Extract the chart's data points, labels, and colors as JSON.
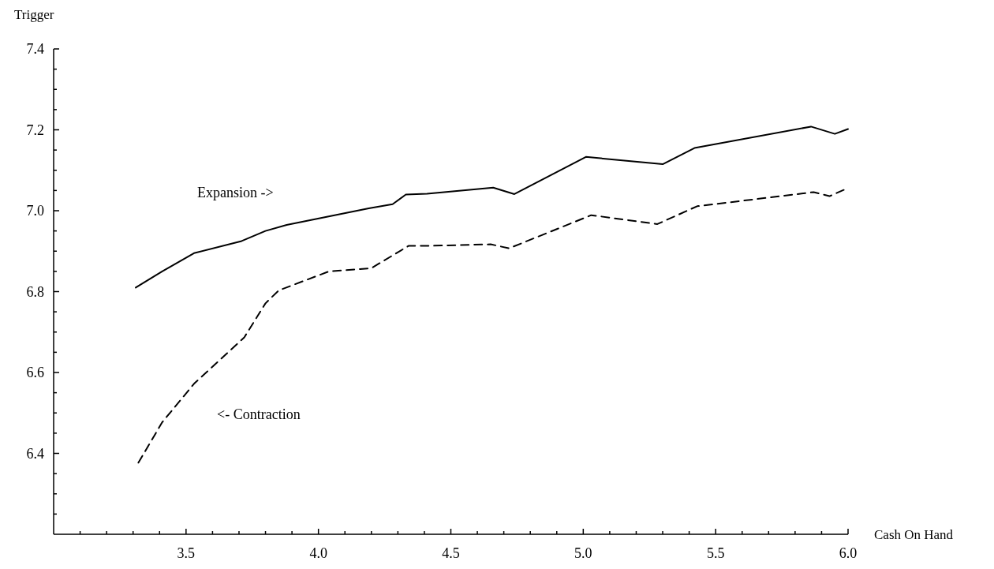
{
  "chart_data": {
    "type": "line",
    "xlabel": "Cash On Hand",
    "ylabel": "Trigger",
    "xlim": [
      3.0,
      6.0
    ],
    "ylim": [
      6.2,
      7.4
    ],
    "xticks": [
      {
        "value": 3.1,
        "label": null
      },
      {
        "value": 3.2,
        "label": null
      },
      {
        "value": 3.3,
        "label": null
      },
      {
        "value": 3.4,
        "label": null
      },
      3.5,
      {
        "value": 3.6,
        "label": null
      },
      {
        "value": 3.7,
        "label": null
      },
      {
        "value": 3.8,
        "label": null
      },
      {
        "value": 3.9,
        "label": null
      },
      {
        "value": 4.0,
        "label": "4.0"
      },
      {
        "value": 4.1,
        "label": null
      },
      {
        "value": 4.2,
        "label": null
      },
      {
        "value": 4.3,
        "label": null
      },
      {
        "value": 4.4,
        "label": null
      },
      4.5,
      {
        "value": 4.6,
        "label": null
      },
      {
        "value": 4.7,
        "label": null
      },
      {
        "value": 4.8,
        "label": null
      },
      {
        "value": 4.9,
        "label": null
      },
      {
        "value": 5.0,
        "label": "5.0"
      },
      {
        "value": 5.1,
        "label": null
      },
      {
        "value": 5.2,
        "label": null
      },
      {
        "value": 5.3,
        "label": null
      },
      {
        "value": 5.4,
        "label": null
      },
      5.5,
      {
        "value": 5.6,
        "label": null
      },
      {
        "value": 5.7,
        "label": null
      },
      {
        "value": 5.8,
        "label": null
      },
      {
        "value": 5.9,
        "label": null
      },
      {
        "value": 6.0,
        "label": "6.0"
      }
    ],
    "yticks": [
      {
        "value": 6.25,
        "label": null
      },
      {
        "value": 6.3,
        "label": null
      },
      {
        "value": 6.35,
        "label": null
      },
      6.4,
      {
        "value": 6.45,
        "label": null
      },
      {
        "value": 6.5,
        "label": null
      },
      {
        "value": 6.55,
        "label": null
      },
      6.6,
      {
        "value": 6.65,
        "label": null
      },
      {
        "value": 6.7,
        "label": null
      },
      {
        "value": 6.75,
        "label": null
      },
      6.8,
      {
        "value": 6.85,
        "label": null
      },
      {
        "value": 6.9,
        "label": null
      },
      {
        "value": 6.95,
        "label": null
      },
      {
        "value": 7.0,
        "label": "7.0"
      },
      {
        "value": 7.05,
        "label": null
      },
      {
        "value": 7.1,
        "label": null
      },
      {
        "value": 7.15,
        "label": null
      },
      7.2,
      {
        "value": 7.25,
        "label": null
      },
      {
        "value": 7.3,
        "label": null
      },
      {
        "value": 7.35,
        "label": null
      },
      7.4
    ],
    "grid": false,
    "series": [
      {
        "name": "Expansion ->",
        "color": "#000000",
        "line_style": "solid",
        "x": [
          3.31,
          3.41,
          3.53,
          3.71,
          3.8,
          3.88,
          4.19,
          4.28,
          4.33,
          4.41,
          4.66,
          4.74,
          5.01,
          5.3,
          5.42,
          5.86,
          5.95,
          6.0
        ],
        "values": [
          6.81,
          6.85,
          6.895,
          6.925,
          6.95,
          6.965,
          7.006,
          7.016,
          7.04,
          7.042,
          7.057,
          7.041,
          7.133,
          7.115,
          7.155,
          7.208,
          7.19,
          7.202
        ]
      },
      {
        "name": "<- Contraction",
        "color": "#000000",
        "line_style": "dashed",
        "x": [
          3.32,
          3.41,
          3.53,
          3.72,
          3.8,
          3.85,
          4.04,
          4.2,
          4.34,
          4.41,
          4.65,
          4.72,
          5.03,
          5.28,
          5.43,
          5.87,
          5.93,
          6.0
        ],
        "values": [
          6.377,
          6.477,
          6.572,
          6.687,
          6.771,
          6.803,
          6.85,
          6.858,
          6.913,
          6.913,
          6.917,
          6.907,
          6.989,
          6.967,
          7.011,
          7.046,
          7.036,
          7.056
        ]
      }
    ]
  }
}
